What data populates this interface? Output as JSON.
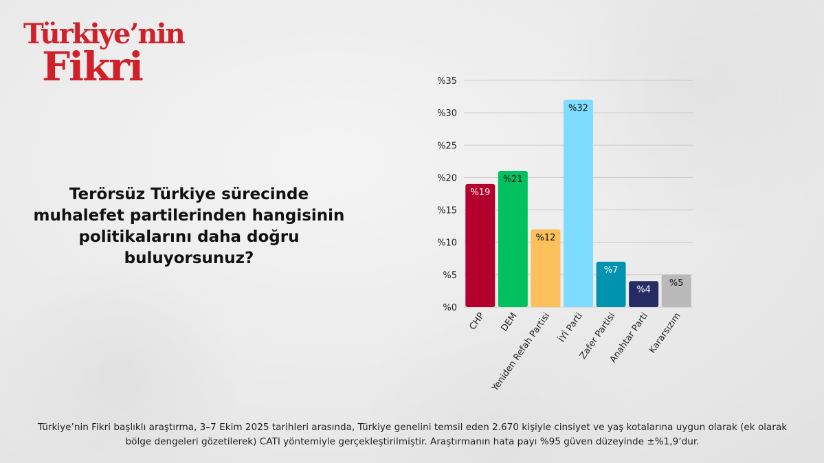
{
  "logo": {
    "line1": "Türkiye’nin",
    "line2": "Fikri"
  },
  "question": "Terörsüz Türkiye sürecinde muhalefet partilerinden hangisinin politikalarını daha doğru buluyorsunuz?",
  "footer": "Türkiye’nin Fikri başlıklı araştırma, 3–7 Ekim 2025 tarihleri arasında, Türkiye genelini temsil eden 2.670 kişiyle cinsiyet ve yaş kotalarına uygun olarak (ek olarak bölge dengeleri gözetilerek) CATI yöntemiyle gerçekleştirilmiştir. Araştırmanın hata payı %95 güven düzeyinde ±%1,9’dur.",
  "chart_data": {
    "type": "bar",
    "categories": [
      "CHP",
      "DEM",
      "Yeniden Refah Partisi",
      "İYİ Parti",
      "Zafer Partisi",
      "Anahtar Parti",
      "Kararsızım"
    ],
    "values": [
      19,
      21,
      12,
      32,
      7,
      4,
      5
    ],
    "data_labels": [
      "%19",
      "%21",
      "%12",
      "%32",
      "%7",
      "%4",
      "%5"
    ],
    "colors": [
      "#b3002d",
      "#00c060",
      "#fbbf5b",
      "#7ddcff",
      "#0093b0",
      "#262b63",
      "#b9b9b9"
    ],
    "label_colors": [
      "#ffffff",
      "#111111",
      "#111111",
      "#111111",
      "#ffffff",
      "#ffffff",
      "#111111"
    ],
    "yticks": [
      "%0",
      "%5",
      "%10",
      "%15",
      "%20",
      "%25",
      "%30",
      "%35"
    ],
    "ylim": [
      0,
      35
    ],
    "grid": true
  }
}
